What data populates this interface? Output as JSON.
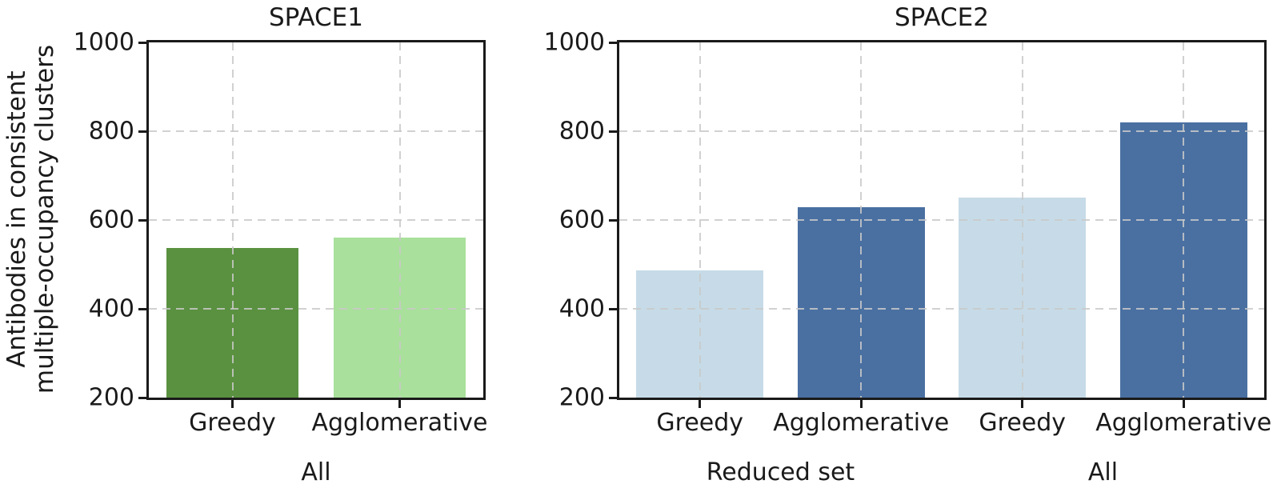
{
  "figure": {
    "background": "#ffffff",
    "ylabel": "Antibodies in consistent\nmultiple-occupancy clusters"
  },
  "axis_style": {
    "grid_color": "#c9c9c9",
    "spine_color": "#1a1a1a",
    "text_color": "#1a1a1a",
    "grid_style": "dashed",
    "bar_width_fraction": 0.79
  },
  "chart_data": [
    {
      "type": "bar",
      "title": "SPACE1",
      "categories": [
        "Greedy",
        "Agglomerative"
      ],
      "values": [
        537,
        560
      ],
      "bar_colors": [
        "#5a9140",
        "#a9e09b"
      ],
      "groups": [
        {
          "label": "All",
          "members": [
            0,
            1
          ]
        }
      ],
      "ylim": [
        200,
        1000
      ],
      "yticks": [
        200,
        400,
        600,
        800,
        1000
      ],
      "grid": true,
      "legend_position": "none"
    },
    {
      "type": "bar",
      "title": "SPACE2",
      "categories": [
        "Greedy",
        "Agglomerative",
        "Greedy",
        "Agglomerative"
      ],
      "values": [
        486,
        628,
        650,
        820
      ],
      "bar_colors": [
        "#c6dbe7",
        "#4a70a2",
        "#c6dbe7",
        "#4a70a2"
      ],
      "groups": [
        {
          "label": "Reduced set",
          "members": [
            0,
            1
          ]
        },
        {
          "label": "All",
          "members": [
            2,
            3
          ]
        }
      ],
      "ylim": [
        200,
        1000
      ],
      "yticks": [
        200,
        400,
        600,
        800,
        1000
      ],
      "grid": true,
      "legend_position": "none"
    }
  ]
}
